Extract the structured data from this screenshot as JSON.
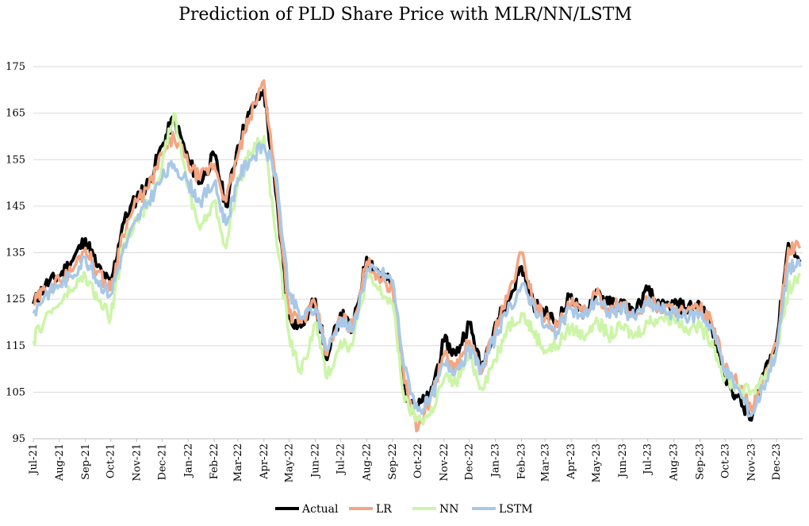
{
  "chart_data": {
    "type": "line",
    "title": "Prediction of PLD Share Price with MLR/NN/LSTM",
    "xlabel": "",
    "ylabel": "",
    "ylim": [
      95,
      175
    ],
    "y_ticks": [
      95,
      105,
      115,
      125,
      135,
      145,
      155,
      165,
      175
    ],
    "x_tick_labels": [
      "Jul-21",
      "Aug-21",
      "Sep-21",
      "Oct-21",
      "Nov-21",
      "Dec-21",
      "Jan-22",
      "Feb-22",
      "Mar-22",
      "Apr-22",
      "May-22",
      "Jun-22",
      "Jul-22",
      "Aug-22",
      "Sep-22",
      "Oct-22",
      "Nov-22",
      "Dec-22",
      "Jan-23",
      "Feb-23",
      "Mar-23",
      "Apr-23",
      "May-23",
      "Jun-23",
      "Jul-23",
      "Aug-23",
      "Sep-23",
      "Oct-23",
      "Nov-23",
      "Dec-23"
    ],
    "grid": "horizontal",
    "legend_position": "bottom",
    "x_dates": [
      "2021-07-01",
      "2021-07-15",
      "2021-08-01",
      "2021-08-15",
      "2021-09-01",
      "2021-09-15",
      "2021-10-01",
      "2021-10-15",
      "2021-11-01",
      "2021-11-15",
      "2021-12-01",
      "2021-12-15",
      "2022-01-01",
      "2022-01-15",
      "2022-02-01",
      "2022-02-15",
      "2022-03-01",
      "2022-03-15",
      "2022-04-01",
      "2022-04-15",
      "2022-05-01",
      "2022-05-15",
      "2022-06-01",
      "2022-06-15",
      "2022-07-01",
      "2022-07-15",
      "2022-08-01",
      "2022-08-15",
      "2022-09-01",
      "2022-09-15",
      "2022-10-01",
      "2022-10-15",
      "2022-11-01",
      "2022-11-15",
      "2022-12-01",
      "2022-12-15",
      "2023-01-01",
      "2023-01-15",
      "2023-02-01",
      "2023-02-15",
      "2023-03-01",
      "2023-03-15",
      "2023-04-01",
      "2023-04-15",
      "2023-05-01",
      "2023-05-15",
      "2023-06-01",
      "2023-06-15",
      "2023-07-01",
      "2023-07-15",
      "2023-08-01",
      "2023-08-15",
      "2023-09-01",
      "2023-09-15",
      "2023-10-01",
      "2023-10-15",
      "2023-11-01",
      "2023-11-15",
      "2023-12-01",
      "2023-12-15",
      "2023-12-29"
    ],
    "series": [
      {
        "name": "Actual",
        "color": "#000000",
        "values": [
          124,
          128,
          130,
          133,
          138,
          132,
          128,
          141,
          147,
          150,
          158,
          164,
          155,
          150,
          156,
          145,
          158,
          165,
          170,
          148,
          121,
          119,
          125,
          112,
          122,
          118,
          134,
          131,
          128,
          105,
          102,
          104,
          116,
          113,
          120,
          110,
          120,
          124,
          132,
          124,
          122,
          120,
          126,
          121,
          127,
          124,
          124,
          122,
          127,
          123,
          124,
          123,
          124,
          119,
          108,
          104,
          99,
          109,
          116,
          137,
          133
        ]
      },
      {
        "name": "LR",
        "color": "#f4a582",
        "values": [
          124,
          127,
          129,
          131,
          136,
          131,
          127,
          139,
          146,
          149,
          156,
          160,
          154,
          151,
          154,
          146,
          156,
          164,
          172,
          150,
          122,
          120,
          124,
          113,
          121,
          119,
          133,
          130,
          127,
          107,
          97,
          103,
          113,
          110,
          116,
          109,
          119,
          125,
          135,
          125,
          121,
          119,
          124,
          122,
          126,
          123,
          124,
          121,
          125,
          123,
          123,
          122,
          123,
          120,
          110,
          107,
          101,
          108,
          115,
          136,
          136
        ]
      },
      {
        "name": "NN",
        "color": "#ccf5a8",
        "values": [
          116,
          121,
          124,
          127,
          130,
          125,
          121,
          136,
          142,
          146,
          154,
          165,
          149,
          140,
          146,
          136,
          150,
          156,
          160,
          139,
          117,
          109,
          120,
          108,
          116,
          115,
          130,
          127,
          124,
          103,
          99,
          100,
          108,
          107,
          113,
          106,
          112,
          119,
          122,
          118,
          114,
          115,
          119,
          117,
          121,
          117,
          119,
          117,
          120,
          121,
          121,
          119,
          119,
          116,
          108,
          106,
          105,
          108,
          114,
          127,
          130
        ]
      },
      {
        "name": "LSTM",
        "color": "#a8c8e8",
        "values": [
          122,
          126,
          128,
          130,
          134,
          129,
          126,
          135,
          142,
          146,
          151,
          154,
          150,
          146,
          150,
          141,
          151,
          155,
          158,
          152,
          126,
          121,
          123,
          114,
          121,
          118,
          131,
          131,
          129,
          110,
          101,
          103,
          111,
          110,
          114,
          110,
          117,
          122,
          128,
          124,
          119,
          118,
          123,
          121,
          125,
          122,
          123,
          121,
          124,
          123,
          122,
          121,
          122,
          119,
          110,
          106,
          100,
          106,
          114,
          132,
          132
        ]
      }
    ]
  }
}
